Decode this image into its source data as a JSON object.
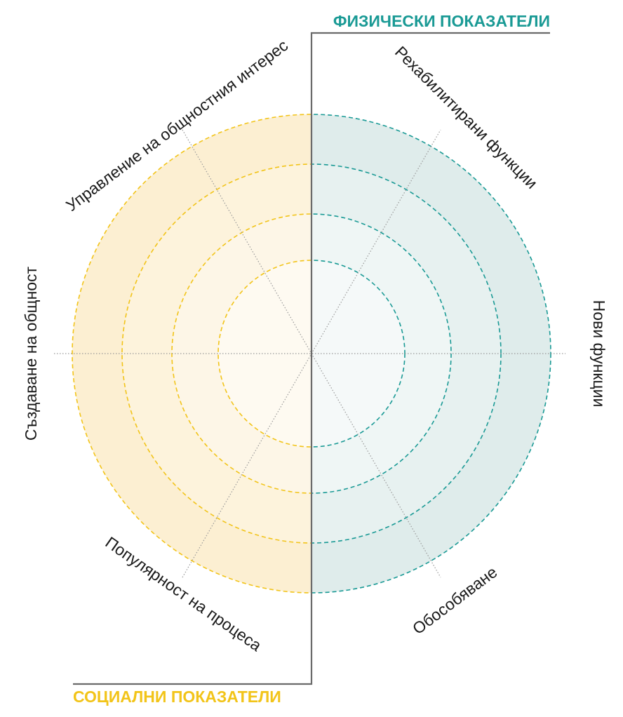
{
  "titles": {
    "physical": "ФИЗИЧЕСКИ ПОКАЗАТЕЛИ",
    "social": "СОЦИАЛНИ ПОКАЗАТЕЛИ"
  },
  "axes": {
    "rehabilitated_functions": "Рехабилитирани функции",
    "new_functions": "Нови функции",
    "segregation": "Обособяване",
    "process_popularity": "Популярност на процеса",
    "community_creation": "Създаване на общност",
    "community_management": "Управление на общностния интерес"
  },
  "colors": {
    "physical_accent": "#1a9a95",
    "social_accent": "#f2c419",
    "physical_fill": "#dfeceb",
    "social_fill": "#fcefd2",
    "divider": "#6a6a6a",
    "spoke": "#999999"
  },
  "ring_count": 4
}
